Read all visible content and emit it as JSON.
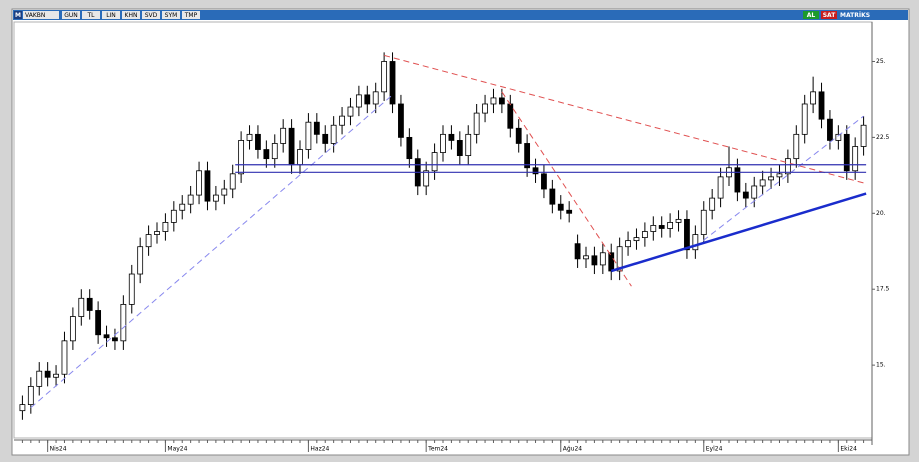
{
  "toolbar": {
    "logo": "M",
    "symbol": "VAKBN",
    "buttons": [
      "GUN",
      "TL",
      "LIN",
      "KHN",
      "SVD",
      "SYM",
      "TMP"
    ],
    "buy": "AL",
    "sell": "SAT",
    "brand": "MATRİKS"
  },
  "chart_data": {
    "type": "candlestick",
    "open": [
      13.5,
      13.7,
      14.3,
      14.8,
      14.6,
      14.7,
      15.8,
      16.6,
      17.2,
      16.8,
      16.0,
      15.9,
      15.8,
      17.0,
      18.0,
      18.9,
      19.3,
      19.4,
      19.7,
      20.1,
      20.3,
      20.6,
      21.4,
      20.4,
      20.6,
      20.8,
      21.3,
      22.4,
      22.6,
      22.1,
      21.8,
      22.3,
      22.8,
      21.6,
      22.1,
      23.0,
      22.6,
      22.3,
      22.9,
      23.2,
      23.5,
      23.9,
      23.6,
      24.0,
      25.0,
      23.6,
      22.5,
      21.8,
      20.9,
      21.4,
      22.0,
      22.6,
      22.4,
      21.9,
      22.6,
      23.3,
      23.6,
      23.8,
      23.6,
      22.8,
      22.3,
      21.5,
      21.3,
      20.8,
      20.3,
      20.1,
      19.0,
      18.5,
      18.6,
      18.3,
      18.7,
      18.1,
      18.9,
      19.1,
      19.2,
      19.4,
      19.6,
      19.5,
      19.7,
      19.8,
      18.8,
      19.3,
      20.1,
      20.5,
      21.2,
      21.5,
      20.7,
      20.5,
      20.9,
      21.1,
      21.2,
      21.3,
      21.8,
      22.6,
      23.6,
      24.0,
      23.1,
      22.4,
      22.6,
      21.4,
      22.2
    ],
    "high": [
      14.0,
      14.6,
      15.1,
      15.1,
      15.0,
      16.1,
      16.9,
      17.5,
      17.5,
      17.1,
      16.3,
      16.2,
      17.3,
      18.3,
      19.2,
      19.6,
      19.7,
      20.0,
      20.4,
      20.6,
      20.9,
      21.7,
      21.7,
      20.9,
      21.1,
      21.6,
      22.7,
      22.9,
      22.9,
      22.4,
      22.6,
      23.1,
      23.1,
      22.4,
      23.3,
      23.3,
      22.9,
      23.2,
      23.5,
      23.8,
      24.2,
      24.2,
      24.3,
      25.3,
      25.3,
      23.9,
      22.8,
      22.1,
      21.7,
      22.3,
      22.9,
      22.9,
      22.7,
      22.9,
      23.6,
      23.9,
      24.1,
      24.1,
      23.9,
      23.1,
      22.6,
      21.8,
      21.6,
      21.1,
      20.6,
      20.4,
      19.3,
      18.9,
      18.9,
      19.0,
      19.0,
      19.2,
      19.4,
      19.5,
      19.7,
      19.9,
      19.9,
      20.0,
      20.1,
      20.1,
      19.6,
      20.4,
      20.8,
      21.5,
      22.2,
      21.8,
      21.0,
      21.2,
      21.4,
      21.5,
      21.6,
      22.1,
      22.9,
      23.9,
      24.5,
      24.3,
      23.4,
      22.9,
      22.9,
      22.5,
      23.2
    ],
    "low": [
      13.2,
      13.4,
      14.0,
      14.3,
      14.3,
      14.4,
      15.5,
      16.3,
      16.5,
      15.7,
      15.6,
      15.5,
      15.5,
      16.7,
      17.7,
      18.6,
      19.0,
      19.1,
      19.4,
      19.8,
      20.0,
      20.3,
      20.1,
      20.1,
      20.3,
      20.5,
      21.0,
      22.1,
      21.8,
      21.5,
      21.5,
      22.0,
      21.3,
      21.3,
      21.8,
      22.3,
      22.0,
      22.0,
      22.6,
      22.9,
      23.2,
      23.3,
      23.3,
      23.7,
      23.3,
      22.2,
      21.5,
      20.6,
      20.6,
      21.1,
      21.7,
      22.1,
      21.6,
      21.6,
      22.3,
      23.0,
      23.3,
      23.3,
      22.5,
      22.0,
      21.2,
      21.0,
      20.5,
      20.0,
      19.8,
      19.7,
      18.2,
      18.2,
      18.0,
      18.0,
      17.8,
      17.8,
      18.6,
      18.8,
      18.9,
      19.1,
      19.2,
      19.2,
      19.4,
      18.5,
      18.5,
      19.0,
      19.8,
      20.2,
      20.9,
      20.4,
      20.2,
      20.2,
      20.6,
      20.8,
      20.9,
      21.0,
      21.5,
      22.3,
      23.3,
      22.8,
      22.1,
      22.1,
      21.1,
      21.1,
      21.9
    ],
    "close": [
      13.7,
      14.3,
      14.8,
      14.6,
      14.7,
      15.8,
      16.6,
      17.2,
      16.8,
      16.0,
      15.9,
      15.8,
      17.0,
      18.0,
      18.9,
      19.3,
      19.4,
      19.7,
      20.1,
      20.3,
      20.6,
      21.4,
      20.4,
      20.6,
      20.8,
      21.3,
      22.4,
      22.6,
      22.1,
      21.8,
      22.3,
      22.8,
      21.6,
      22.1,
      23.0,
      22.6,
      22.3,
      22.9,
      23.2,
      23.5,
      23.9,
      23.6,
      24.0,
      25.0,
      23.6,
      22.5,
      21.8,
      20.9,
      21.4,
      22.0,
      22.6,
      22.4,
      21.9,
      22.6,
      23.3,
      23.6,
      23.8,
      23.6,
      22.8,
      22.3,
      21.5,
      21.3,
      20.8,
      20.3,
      20.1,
      20.0,
      18.5,
      18.6,
      18.3,
      18.7,
      18.1,
      18.9,
      19.1,
      19.2,
      19.4,
      19.6,
      19.5,
      19.7,
      19.8,
      18.8,
      19.3,
      20.1,
      20.5,
      21.2,
      21.5,
      20.7,
      20.5,
      20.9,
      21.1,
      21.2,
      21.3,
      21.8,
      22.6,
      23.6,
      24.0,
      23.1,
      22.4,
      22.6,
      21.4,
      22.2,
      22.9
    ],
    "up_color": "#ffffff",
    "down_color": "#000000",
    "edge_color": "#000000",
    "xlim": [
      -1,
      101
    ],
    "xticks": [
      {
        "value": 3,
        "label": "Nis24"
      },
      {
        "value": 17,
        "label": "May24"
      },
      {
        "value": 34,
        "label": "Haz24"
      },
      {
        "value": 48,
        "label": "Tem24"
      },
      {
        "value": 64,
        "label": "Ağu24"
      },
      {
        "value": 81,
        "label": "Eyl24"
      },
      {
        "value": 97,
        "label": "Eki24"
      }
    ],
    "ylim": [
      12.6,
      26.3
    ],
    "yticks": [
      {
        "value": 15,
        "label": "15."
      },
      17.5,
      {
        "value": 20,
        "label": "20."
      },
      22.5,
      {
        "value": 25,
        "label": "25."
      }
    ],
    "lines": [
      {
        "color": "#8888ee",
        "style": "dashed",
        "width": 1,
        "points": [
          [
            1,
            13.6
          ],
          [
            44,
            23.9
          ]
        ]
      },
      {
        "color": "#e05050",
        "style": "dashed",
        "width": 1,
        "points": [
          [
            43,
            25.2
          ],
          [
            100,
            21.0
          ]
        ]
      },
      {
        "color": "#e05050",
        "style": "dashed",
        "width": 1,
        "points": [
          [
            57,
            24.0
          ],
          [
            72.4,
            17.6
          ]
        ]
      },
      {
        "color": "#8888ee",
        "style": "dashed",
        "width": 1,
        "points": [
          [
            80,
            18.9
          ],
          [
            100,
            23.2
          ]
        ]
      },
      {
        "color": "#1a2ccc",
        "style": "solid",
        "width": 2.5,
        "points": [
          [
            70,
            18.1
          ],
          [
            100.3,
            20.65
          ]
        ]
      },
      {
        "color": "#3030b0",
        "style": "solid",
        "width": 1.2,
        "points": [
          [
            25.3,
            21.6
          ],
          [
            100.3,
            21.6
          ]
        ]
      },
      {
        "color": "#3030b0",
        "style": "solid",
        "width": 1.2,
        "points": [
          [
            25.3,
            21.35
          ],
          [
            100.3,
            21.35
          ]
        ]
      }
    ]
  }
}
